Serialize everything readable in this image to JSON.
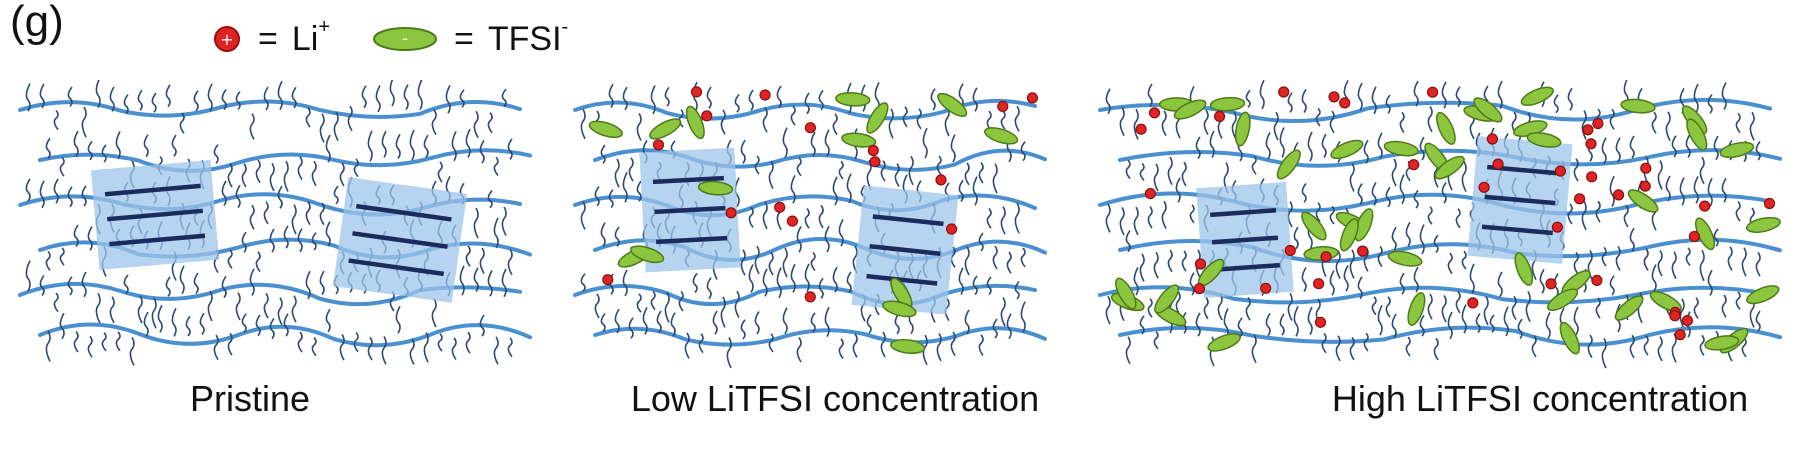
{
  "figure": {
    "panel_label": "(g)",
    "legend": {
      "li": {
        "label": "Li",
        "charge": "+",
        "symbol": "+",
        "color": "#e02424",
        "equals": "="
      },
      "tfsi": {
        "label": "TFSI",
        "charge": "-",
        "symbol": "-",
        "color": "#8cc63f",
        "equals": "="
      }
    },
    "panels": [
      {
        "caption": "Pristine",
        "li_count": 0,
        "tfsi_count": 0
      },
      {
        "caption": "Low LiTFSI concentration",
        "li_count": 16,
        "tfsi_count": 14
      },
      {
        "caption": "High LiTFSI concentration",
        "li_count": 40,
        "tfsi_count": 44
      }
    ],
    "colors": {
      "polymer_chain": "#4a90d0",
      "side_chain": "#2b4a73",
      "crystalline_region": "#9ec4ea",
      "backbone_stack": "#1a2b5c"
    }
  }
}
